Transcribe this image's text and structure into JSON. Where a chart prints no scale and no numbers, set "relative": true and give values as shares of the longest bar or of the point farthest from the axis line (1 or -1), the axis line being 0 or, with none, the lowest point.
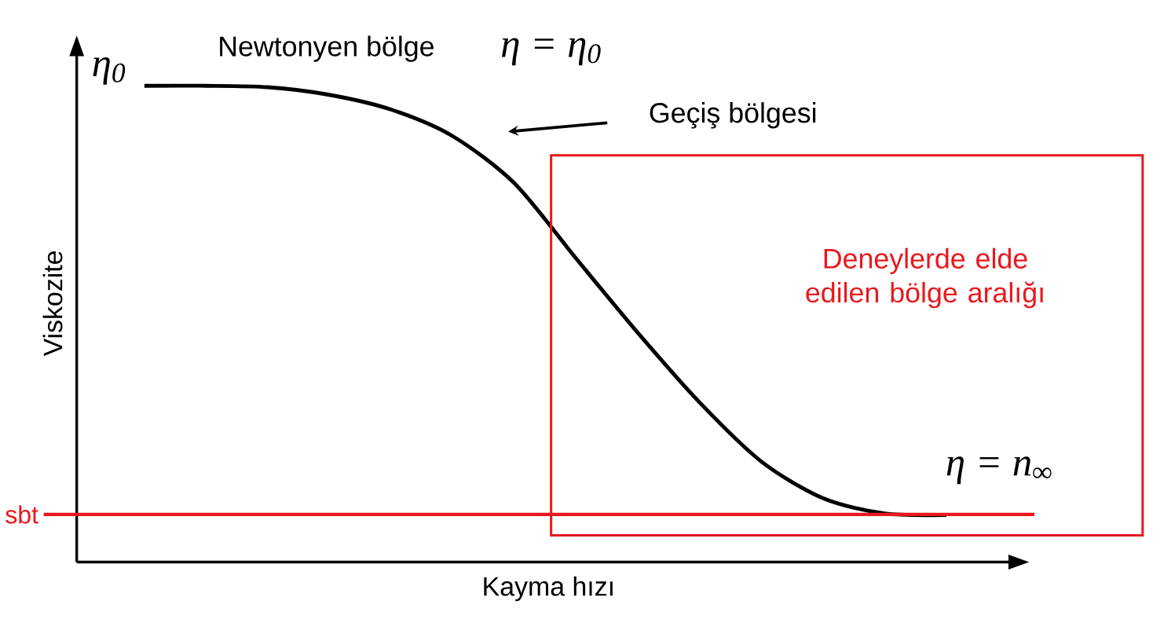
{
  "chart_data": {
    "type": "line",
    "relative": true,
    "xlabel": "Kayma hızı",
    "ylabel": "Viskozite",
    "categories": [
      null,
      null,
      null,
      null,
      null,
      null,
      null,
      null,
      null,
      null,
      null,
      null,
      null,
      null
    ],
    "series": [
      {
        "color": "#000000",
        "values": [
          1,
          1,
          0.997,
          0.981,
          0.95,
          0.894,
          0.795,
          0.637,
          0.481,
          0.335,
          0.211,
          0.134,
          0.102,
          0.099
        ]
      }
    ],
    "marker": "none",
    "ref_lines": [
      {
        "axis": "y",
        "value": 0.1,
        "label": "sbt",
        "color": "#e8191e"
      }
    ],
    "annotations": [
      "Newtonyen bölge",
      "η = η$_{0}$",
      "Geçiş bölgesi",
      "Deneylerde elde edilen bölge aralığı",
      "η = n$_{∞}$",
      "η$_{0}$"
    ]
  }
}
